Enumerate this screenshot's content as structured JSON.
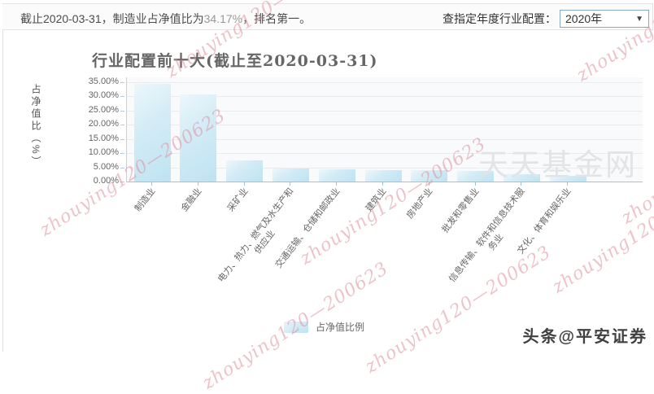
{
  "header": {
    "summary_prefix": "截止2020-03-31，制造业占净值比为",
    "summary_value": "34.17%",
    "summary_suffix": "，排名第一。",
    "filter_label": "查指定年度行业配置：",
    "year_value": "2020年",
    "dropdown_icon": "▼"
  },
  "chart_data": {
    "type": "bar",
    "title": "行业配置前十大(截止至2020-03-31)",
    "ylabel": "占净值比（%）",
    "xlabel": "",
    "ylim": [
      0,
      35
    ],
    "ytick_step": 5,
    "ytick_labels": [
      "35.00%",
      "30.00%",
      "25.00%",
      "20.00%",
      "15.00%",
      "10.00%",
      "5.00%",
      "0.00%"
    ],
    "grid": true,
    "legend_position": "bottom",
    "legend": [
      "占净值比例"
    ],
    "series_name": "占净值比例",
    "bar_color": "#c6e6f4",
    "categories": [
      "制造业",
      "金融业",
      "采矿业",
      "电力、热力、燃气及水生产和\n供应业",
      "交通运输、仓储和邮政业",
      "建筑业",
      "房地产业",
      "批发和零售业",
      "信息传输、软件和信息技术服\n务业",
      "文化、体育和娱乐业"
    ],
    "values": [
      34.17,
      30.7,
      7.4,
      4.6,
      4.3,
      4.0,
      3.9,
      3.6,
      2.7,
      1.9
    ]
  },
  "watermarks": {
    "site": "天天基金网",
    "diagonal_text": "zhouying120—200623",
    "footer_badge": "头条@平安证券"
  }
}
